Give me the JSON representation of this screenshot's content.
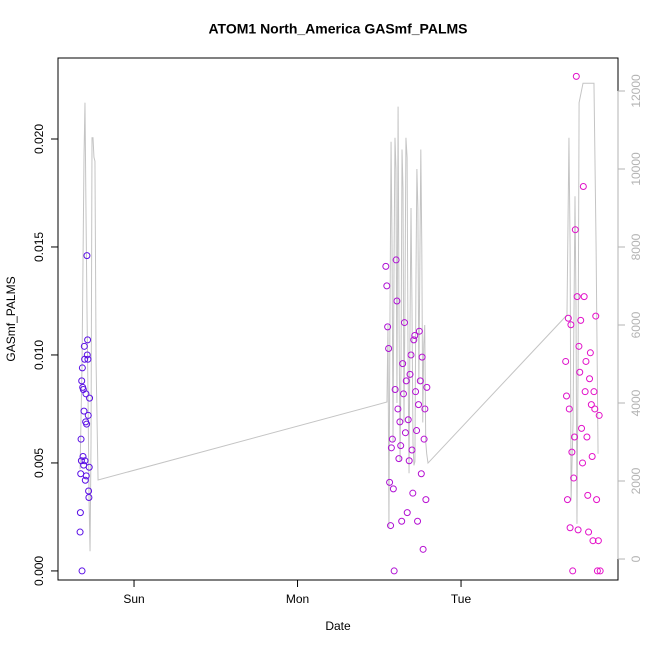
{
  "chart_data": {
    "type": "scatter",
    "title": "ATOM1 North_America GASmf_PALMS",
    "x_label": "Date",
    "y_label": "GASmf_PALMS",
    "xlim": [
      -0.465,
      2.96
    ],
    "xticks": [
      {
        "value": 0,
        "label": "Sun"
      },
      {
        "value": 1,
        "label": "Mon"
      },
      {
        "value": 2,
        "label": "Tue"
      }
    ],
    "ylim": [
      -0.00042,
      0.02375
    ],
    "yticks": [
      {
        "value": 0,
        "label": "0.000"
      },
      {
        "value": 0.005,
        "label": "0.005"
      },
      {
        "value": 0.01,
        "label": "0.010"
      },
      {
        "value": 0.015,
        "label": "0.015"
      },
      {
        "value": 0.02,
        "label": "0.020"
      }
    ],
    "y2lim": [
      -538,
      12846
    ],
    "y2ticks": [
      0,
      2000,
      4000,
      6000,
      8000,
      10000,
      12000
    ],
    "y2_color": "#b3b3b3",
    "series": [
      {
        "type": "scatter",
        "color_gradient": [
          "#5a10e6",
          "#e610c8"
        ],
        "x": [
          -0.33,
          -0.328,
          -0.326,
          -0.324,
          -0.322,
          -0.32,
          -0.318,
          -0.316,
          -0.314,
          -0.312,
          -0.31,
          -0.308,
          -0.306,
          -0.304,
          -0.302,
          -0.3,
          -0.298,
          -0.296,
          -0.294,
          -0.292,
          -0.29,
          -0.288,
          -0.286,
          -0.284,
          -0.282,
          -0.28,
          -0.278,
          -0.276,
          -0.274,
          -0.272,
          1.54,
          1.546,
          1.551,
          1.557,
          1.563,
          1.569,
          1.574,
          1.58,
          1.586,
          1.591,
          1.597,
          1.603,
          1.608,
          1.614,
          1.62,
          1.626,
          1.631,
          1.637,
          1.643,
          1.648,
          1.654,
          1.66,
          1.665,
          1.671,
          1.677,
          1.683,
          1.688,
          1.694,
          1.7,
          1.705,
          1.711,
          1.717,
          1.722,
          1.728,
          1.734,
          1.74,
          1.745,
          1.751,
          1.757,
          1.762,
          1.768,
          1.774,
          1.779,
          1.785,
          1.791,
          2.64,
          2.645,
          2.651,
          2.656,
          2.662,
          2.667,
          2.672,
          2.678,
          2.683,
          2.689,
          2.694,
          2.699,
          2.705,
          2.71,
          2.716,
          2.721,
          2.726,
          2.732,
          2.737,
          2.743,
          2.748,
          2.753,
          2.759,
          2.764,
          2.77,
          2.775,
          2.78,
          2.786,
          2.791,
          2.797,
          2.802,
          2.807,
          2.813,
          2.818,
          2.824,
          2.829,
          2.834,
          2.84,
          2.845,
          2.851
        ],
        "values": [
          0.0018,
          0.0027,
          0.0045,
          0.0061,
          0.0051,
          0.0088,
          0.0,
          0.0094,
          0.0085,
          0.0053,
          0.0084,
          0.0049,
          0.0074,
          0.0104,
          0.0098,
          0.0051,
          0.0042,
          0.0069,
          0.0082,
          0.0044,
          0.0068,
          0.0146,
          0.01,
          0.0107,
          0.0098,
          0.0072,
          0.0037,
          0.0034,
          0.0048,
          0.008,
          0.0141,
          0.0132,
          0.0113,
          0.0103,
          0.0041,
          0.0021,
          0.0057,
          0.0061,
          0.0038,
          0.0,
          0.0084,
          0.0144,
          0.0125,
          0.0075,
          0.0052,
          0.0069,
          0.0058,
          0.0023,
          0.0096,
          0.0082,
          0.0115,
          0.0064,
          0.0088,
          0.0027,
          0.007,
          0.0051,
          0.0091,
          0.01,
          0.0056,
          0.0036,
          0.0107,
          0.0109,
          0.0083,
          0.0065,
          0.0023,
          0.0077,
          0.0111,
          0.0088,
          0.0045,
          0.0099,
          0.001,
          0.0061,
          0.0075,
          0.0033,
          0.0085,
          0.0097,
          0.0081,
          0.0033,
          0.0117,
          0.0075,
          0.002,
          0.0114,
          0.0055,
          0.0,
          0.0043,
          0.0062,
          0.0158,
          0.0229,
          0.0127,
          0.0019,
          0.0104,
          0.0092,
          0.0116,
          0.0066,
          0.005,
          0.0178,
          0.0127,
          0.0083,
          0.0097,
          0.0062,
          0.0035,
          0.0018,
          0.0089,
          0.0101,
          0.0077,
          0.0053,
          0.0014,
          0.0083,
          0.0075,
          0.0118,
          0.0033,
          0.0,
          0.0014,
          0.0072,
          0.0
        ]
      },
      {
        "type": "line",
        "axis": "y2",
        "color": "#c4c4c4",
        "x": [
          -0.33,
          -0.318,
          -0.306,
          -0.3,
          -0.294,
          -0.288,
          -0.281,
          -0.275,
          -0.269,
          -0.263,
          -0.257,
          -0.251,
          -0.245,
          -0.239,
          -0.232,
          -0.22,
          1.547,
          1.553,
          1.559,
          1.565,
          1.572,
          1.578,
          1.584,
          1.59,
          1.596,
          1.602,
          1.608,
          1.615,
          1.621,
          1.627,
          1.633,
          1.639,
          1.645,
          1.651,
          1.657,
          1.663,
          1.67,
          1.676,
          1.682,
          1.688,
          1.694,
          1.7,
          1.706,
          1.712,
          1.718,
          1.724,
          1.73,
          1.736,
          1.742,
          1.748,
          1.754,
          1.76,
          1.766,
          1.772,
          1.778,
          1.784,
          1.79,
          1.798,
          2.648,
          2.66,
          2.667,
          2.673,
          2.685,
          2.697,
          2.703,
          2.709,
          2.716,
          2.722,
          2.746,
          2.777,
          2.789,
          2.813,
          2.826,
          2.838
        ],
        "values": [
          2300,
          5000,
          10300,
          11700,
          9000,
          6500,
          4000,
          1500,
          200,
          3000,
          10800,
          10800,
          10300,
          10200,
          5000,
          2026,
          4026,
          6000,
          800,
          6000,
          10700,
          8000,
          3000,
          7500,
          10800,
          10000,
          4000,
          11600,
          6000,
          2500,
          5000,
          10500,
          9500,
          3500,
          6500,
          10800,
          10300,
          5000,
          2200,
          6000,
          9000,
          6500,
          3000,
          2400,
          2500,
          7000,
          10000,
          9000,
          4500,
          7500,
          10500,
          8000,
          3500,
          5500,
          6000,
          3000,
          2700,
          2460,
          6256,
          10800,
          8000,
          1500,
          3500,
          9300,
          6500,
          900,
          5000,
          11700,
          12200,
          12200,
          12200,
          12200,
          8000,
          2700
        ]
      }
    ]
  }
}
